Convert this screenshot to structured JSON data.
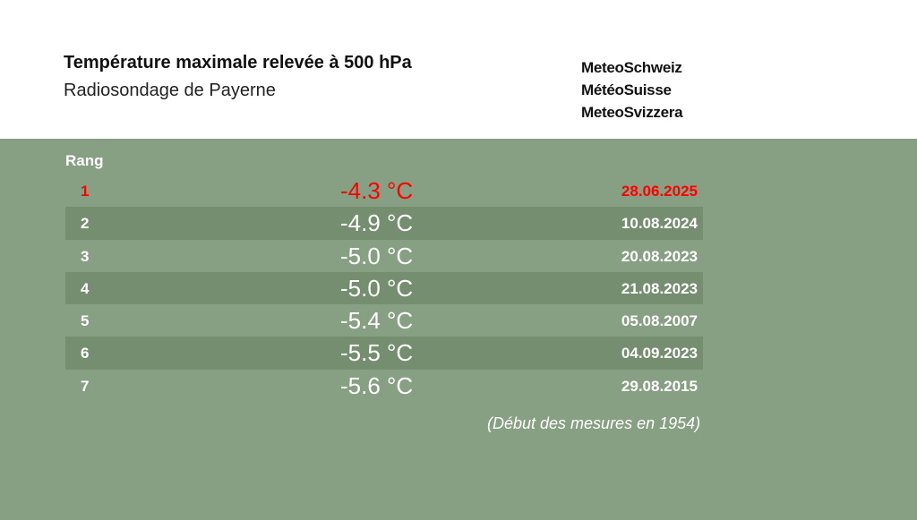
{
  "header": {
    "title": "Température maximale relevée à 500 hPa",
    "subtitle": "Radiosondage de Payerne"
  },
  "logo": {
    "line1": "MeteoSchweiz",
    "line2": "MétéoSuisse",
    "line3": "MeteoSvizzera"
  },
  "table": {
    "rank_header": "Rang",
    "highlight_color": "#ff0000",
    "rows": [
      {
        "rank": "1",
        "temp": "-4.3 °C",
        "date": "28.06.2025"
      },
      {
        "rank": "2",
        "temp": "-4.9 °C",
        "date": "10.08.2024"
      },
      {
        "rank": "3",
        "temp": "-5.0 °C",
        "date": "20.08.2023"
      },
      {
        "rank": "4",
        "temp": "-5.0 °C",
        "date": "21.08.2023"
      },
      {
        "rank": "5",
        "temp": "-5.4 °C",
        "date": "05.08.2007"
      },
      {
        "rank": "6",
        "temp": "-5.5 °C",
        "date": "04.09.2023"
      },
      {
        "rank": "7",
        "temp": "-5.6 °C",
        "date": "29.08.2015"
      }
    ]
  },
  "footnote": "(Début des mesures en 1954)",
  "colors": {
    "panel_background": "#879f82",
    "row_shade": "#768e70",
    "text": "#ffffff"
  }
}
